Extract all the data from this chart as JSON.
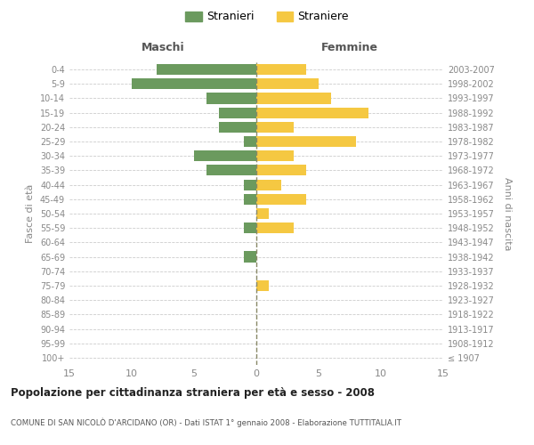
{
  "age_groups": [
    "100+",
    "95-99",
    "90-94",
    "85-89",
    "80-84",
    "75-79",
    "70-74",
    "65-69",
    "60-64",
    "55-59",
    "50-54",
    "45-49",
    "40-44",
    "35-39",
    "30-34",
    "25-29",
    "20-24",
    "15-19",
    "10-14",
    "5-9",
    "0-4"
  ],
  "birth_years": [
    "≤ 1907",
    "1908-1912",
    "1913-1917",
    "1918-1922",
    "1923-1927",
    "1928-1932",
    "1933-1937",
    "1938-1942",
    "1943-1947",
    "1948-1952",
    "1953-1957",
    "1958-1962",
    "1963-1967",
    "1968-1972",
    "1973-1977",
    "1978-1982",
    "1983-1987",
    "1988-1992",
    "1993-1997",
    "1998-2002",
    "2003-2007"
  ],
  "males": [
    0,
    0,
    0,
    0,
    0,
    0,
    0,
    1,
    0,
    1,
    0,
    1,
    1,
    4,
    5,
    1,
    3,
    3,
    4,
    10,
    8
  ],
  "females": [
    0,
    0,
    0,
    0,
    0,
    1,
    0,
    0,
    0,
    3,
    1,
    4,
    2,
    4,
    3,
    8,
    3,
    9,
    6,
    5,
    4
  ],
  "male_color": "#6b9a5e",
  "female_color": "#f5c842",
  "title": "Popolazione per cittadinanza straniera per età e sesso - 2008",
  "subtitle": "COMUNE DI SAN NICOLÒ D'ARCIDANO (OR) - Dati ISTAT 1° gennaio 2008 - Elaborazione TUTTITALIA.IT",
  "xlabel_left": "Maschi",
  "xlabel_right": "Femmine",
  "ylabel_left": "Fasce di età",
  "ylabel_right": "Anni di nascita",
  "legend_male": "Stranieri",
  "legend_female": "Straniere",
  "xlim": 15,
  "background_color": "#ffffff",
  "grid_color": "#cccccc",
  "dashed_line_color": "#888866"
}
